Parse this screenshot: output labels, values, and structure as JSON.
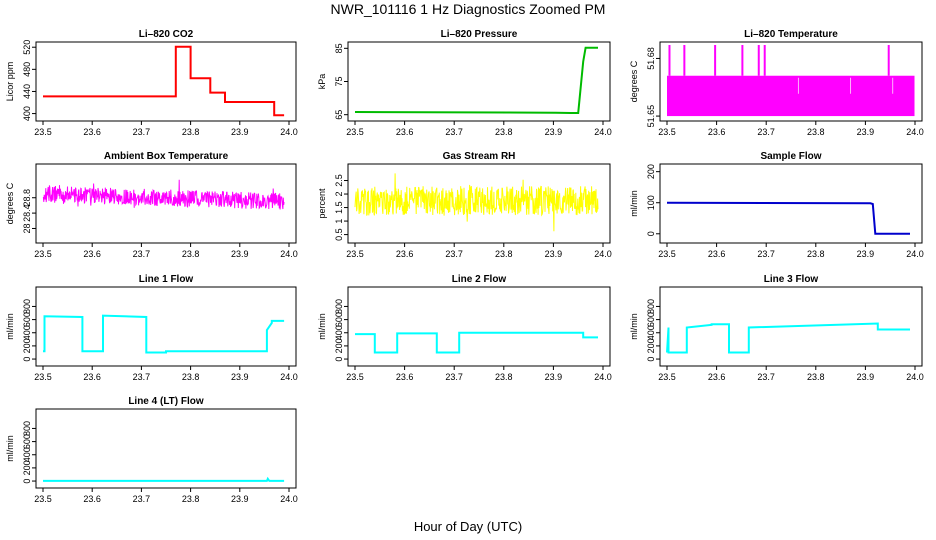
{
  "page": {
    "title": "NWR_101116  1 Hz Diagnostics Zoomed PM",
    "xlabel": "Hour of Day (UTC)"
  },
  "chart_data": [
    {
      "id": "co2",
      "type": "line",
      "title": "Li–820 CO2",
      "ylabel": "Licor ppm",
      "xlim": [
        23.5,
        24.0
      ],
      "xticks": [
        "23.5",
        "23.6",
        "23.7",
        "23.8",
        "23.9",
        "24.0"
      ],
      "ylim": [
        392,
        524
      ],
      "yticks": [
        400,
        440,
        480,
        520
      ],
      "color": "#ff0000",
      "series": [
        {
          "x": [
            23.5,
            23.765,
            23.77,
            23.77,
            23.8,
            23.8,
            23.84,
            23.84,
            23.87,
            23.87,
            23.97,
            23.97,
            23.99
          ],
          "y": [
            431,
            431,
            431,
            521,
            521,
            464,
            464,
            438,
            438,
            421,
            421,
            397,
            397
          ]
        }
      ]
    },
    {
      "id": "pressure",
      "type": "line",
      "title": "Li–820 Pressure",
      "ylabel": "kPa",
      "xlim": [
        23.5,
        24.0
      ],
      "xticks": [
        "23.5",
        "23.6",
        "23.7",
        "23.8",
        "23.9",
        "24.0"
      ],
      "ylim": [
        64,
        86
      ],
      "yticks": [
        65,
        75,
        85
      ],
      "color": "#00bb00",
      "series": [
        {
          "x": [
            23.5,
            23.905,
            23.935,
            23.95,
            23.96,
            23.965,
            23.99
          ],
          "y": [
            65.8,
            65.6,
            65.5,
            65.5,
            81,
            85.2,
            85.2
          ]
        }
      ]
    },
    {
      "id": "licor-temp",
      "type": "area",
      "title": "Li–820 Temperature",
      "ylabel": "degrees C",
      "xlim": [
        23.5,
        24.0
      ],
      "xticks": [
        "23.5",
        "23.6",
        "23.7",
        "23.8",
        "23.9",
        "24.0"
      ],
      "ylim": [
        51.649,
        51.687
      ],
      "yticks": [
        51.65,
        51.68
      ],
      "color": "#ff00ff",
      "band": [
        51.65,
        51.671
      ],
      "spikes": [
        23.505,
        23.535,
        23.597,
        23.652,
        23.685,
        23.697,
        23.947
      ]
    },
    {
      "id": "box-temp",
      "type": "line",
      "title": "Ambient Box Temperature",
      "ylabel": "degrees C",
      "xlim": [
        23.5,
        24.0
      ],
      "xticks": [
        "23.5",
        "23.6",
        "23.7",
        "23.8",
        "23.9",
        "24.0"
      ],
      "ylim": [
        27.7,
        29.6
      ],
      "yticks": [
        28.0,
        28.4,
        28.8
      ],
      "color": "#ff00ff",
      "noise": {
        "start": 28.9,
        "end": 28.7,
        "amp": 0.22
      }
    },
    {
      "id": "rh",
      "type": "line",
      "title": "Gas Stream RH",
      "ylabel": "percent",
      "xlim": [
        23.5,
        24.0
      ],
      "xticks": [
        "23.5",
        "23.6",
        "23.7",
        "23.8",
        "23.9",
        "24.0"
      ],
      "ylim": [
        0.3,
        3.0
      ],
      "yticks": [
        0.5,
        1.0,
        1.5,
        2.0,
        2.5
      ],
      "color": "#ffff00",
      "noise": {
        "start": 1.75,
        "end": 1.75,
        "amp": 0.55
      }
    },
    {
      "id": "sample-flow",
      "type": "line",
      "title": "Sample Flow",
      "ylabel": "ml/min",
      "xlim": [
        23.5,
        24.0
      ],
      "xticks": [
        "23.5",
        "23.6",
        "23.7",
        "23.8",
        "23.9",
        "24.0"
      ],
      "ylim": [
        -20,
        215
      ],
      "yticks": [
        0,
        100,
        200
      ],
      "color": "#0000cc",
      "series": [
        {
          "x": [
            23.5,
            23.91,
            23.915,
            23.92,
            23.99
          ],
          "y": [
            100,
            98,
            96,
            0,
            0
          ]
        }
      ]
    },
    {
      "id": "line1",
      "type": "line",
      "title": "Line 1 Flow",
      "ylabel": "ml/min",
      "xlim": [
        23.5,
        24.0
      ],
      "xticks": [
        "23.5",
        "23.6",
        "23.7",
        "23.8",
        "23.9",
        "24.0"
      ],
      "ylim": [
        -60,
        1050
      ],
      "yticks": [
        0,
        200,
        400,
        600,
        800
      ],
      "color": "#00ffff",
      "series": [
        {
          "x": [
            23.5,
            23.503,
            23.503,
            23.58,
            23.58,
            23.622,
            23.622,
            23.71,
            23.71,
            23.75,
            23.75,
            23.955,
            23.955,
            23.965,
            23.965,
            23.99
          ],
          "y": [
            120,
            120,
            650,
            640,
            120,
            120,
            660,
            640,
            100,
            100,
            120,
            120,
            440,
            550,
            580,
            580
          ]
        }
      ]
    },
    {
      "id": "line2",
      "type": "line",
      "title": "Line 2 Flow",
      "ylabel": "ml/min",
      "xlim": [
        23.5,
        24.0
      ],
      "xticks": [
        "23.5",
        "23.6",
        "23.7",
        "23.8",
        "23.9",
        "24.0"
      ],
      "ylim": [
        -60,
        1050
      ],
      "yticks": [
        0,
        200,
        400,
        600,
        800
      ],
      "color": "#00ffff",
      "series": [
        {
          "x": [
            23.5,
            23.54,
            23.54,
            23.585,
            23.585,
            23.665,
            23.665,
            23.71,
            23.71,
            23.96,
            23.96,
            23.99
          ],
          "y": [
            380,
            380,
            100,
            100,
            390,
            390,
            100,
            100,
            400,
            400,
            330,
            330
          ]
        }
      ]
    },
    {
      "id": "line3",
      "type": "line",
      "title": "Line 3 Flow",
      "ylabel": "ml/min",
      "xlim": [
        23.5,
        24.0
      ],
      "xticks": [
        "23.5",
        "23.6",
        "23.7",
        "23.8",
        "23.9",
        "24.0"
      ],
      "ylim": [
        -60,
        1050
      ],
      "yticks": [
        0,
        200,
        400,
        600,
        800
      ],
      "color": "#00ffff",
      "series": [
        {
          "x": [
            23.5,
            23.503,
            23.503,
            23.54,
            23.54,
            23.59,
            23.59,
            23.625,
            23.625,
            23.665,
            23.665,
            23.925,
            23.925,
            23.99
          ],
          "y": [
            100,
            480,
            100,
            100,
            480,
            520,
            530,
            530,
            100,
            100,
            480,
            540,
            450,
            450
          ]
        }
      ]
    },
    {
      "id": "line4",
      "type": "line",
      "title": "Line 4 (LT) Flow",
      "ylabel": "ml/min",
      "xlim": [
        23.5,
        24.0
      ],
      "xticks": [
        "23.5",
        "23.6",
        "23.7",
        "23.8",
        "23.9",
        "24.0"
      ],
      "ylim": [
        -60,
        1050
      ],
      "yticks": [
        0,
        200,
        400,
        600,
        800
      ],
      "color": "#00ffff",
      "series": [
        {
          "x": [
            23.5,
            23.955,
            23.957,
            23.96,
            23.99
          ],
          "y": [
            2,
            2,
            35,
            2,
            2
          ]
        }
      ]
    }
  ]
}
